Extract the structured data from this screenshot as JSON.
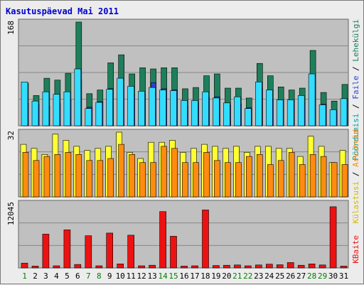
{
  "title": "Kasutuspäevad Mai 2011",
  "colors": {
    "title": "#0000cc",
    "panel_bg": "#c0c0c0",
    "grid": "#888888",
    "weekend_label": "#008000",
    "weekday_label": "#000000",
    "visits": "#00ff00",
    "visits_fill": "#1e7f5a",
    "pages": "#2a3fd8",
    "files": "#33ddff",
    "hits": "#ffff33",
    "sites": "#ff8c10",
    "kbytes": "#ee1111"
  },
  "legend": {
    "hits_label": "Pöördumisi",
    "files_label": "Faile",
    "pages_label": "Lehekülgi",
    "visits_label": "Külastusi",
    "sites_label": "Arvuteid",
    "kbytes_label": "KBaite",
    "separator": "/"
  },
  "chart_data": [
    {
      "type": "bar",
      "panel": "hits-files-pages",
      "ymax_label": "168",
      "ylim": [
        0,
        168
      ],
      "categories": [
        "1",
        "2",
        "3",
        "4",
        "5",
        "6",
        "7",
        "8",
        "9",
        "10",
        "11",
        "12",
        "13",
        "14",
        "15",
        "16",
        "17",
        "18",
        "19",
        "20",
        "21",
        "22",
        "23",
        "24",
        "25",
        "26",
        "27",
        "28",
        "29",
        "30",
        "31"
      ],
      "weekend_days": [
        1,
        7,
        8,
        14,
        15,
        21,
        22,
        28,
        29
      ],
      "series": [
        {
          "name": "Pöördumisi",
          "values": [
            69,
            49,
            77,
            74,
            85,
            168,
            52,
            58,
            102,
            115,
            84,
            94,
            92,
            94,
            94,
            60,
            62,
            81,
            84,
            61,
            61,
            45,
            101,
            81,
            63,
            58,
            61,
            122,
            54,
            40,
            67
          ]
        },
        {
          "name": "Faile",
          "values": [
            36,
            35,
            32,
            36,
            42,
            74,
            30,
            39,
            60,
            66,
            50,
            51,
            70,
            60,
            58,
            32,
            37,
            46,
            47,
            33,
            35,
            29,
            60,
            42,
            42,
            40,
            36,
            72,
            35,
            24,
            44
          ]
        },
        {
          "name": "Lehekülgi",
          "values": [
            71,
            40,
            55,
            51,
            55,
            92,
            28,
            38,
            59,
            77,
            64,
            56,
            62,
            58,
            57,
            41,
            41,
            55,
            45,
            37,
            47,
            28,
            71,
            58,
            42,
            42,
            49,
            84,
            34,
            26,
            44
          ]
        }
      ]
    },
    {
      "type": "bar",
      "panel": "visits-sites",
      "ymax_label": "32",
      "ylim": [
        0,
        32
      ],
      "categories": [
        "1",
        "2",
        "3",
        "4",
        "5",
        "6",
        "7",
        "8",
        "9",
        "10",
        "11",
        "12",
        "13",
        "14",
        "15",
        "16",
        "17",
        "18",
        "19",
        "20",
        "21",
        "22",
        "23",
        "24",
        "25",
        "26",
        "27",
        "28",
        "29",
        "30",
        "31"
      ],
      "series": [
        {
          "name": "Külastusi",
          "values": [
            26,
            24,
            21,
            31,
            28,
            25,
            23,
            24,
            25,
            32,
            22,
            19,
            27,
            27,
            28,
            22,
            24,
            26,
            25,
            24,
            25,
            22,
            25,
            25,
            24,
            24,
            20,
            30,
            25,
            17,
            23
          ]
        },
        {
          "name": "Arvuteid",
          "values": [
            22,
            18,
            20,
            21,
            22,
            21,
            18,
            18,
            19,
            26,
            21,
            17,
            17,
            25,
            24,
            17,
            17,
            22,
            18,
            17,
            17,
            20,
            21,
            16,
            18,
            22,
            16,
            21,
            20,
            17,
            16
          ]
        }
      ]
    },
    {
      "type": "bar",
      "panel": "kbytes",
      "ymax_label": "12045",
      "ylim": [
        0,
        12045
      ],
      "categories": [
        "1",
        "2",
        "3",
        "4",
        "5",
        "6",
        "7",
        "8",
        "9",
        "10",
        "11",
        "12",
        "13",
        "14",
        "15",
        "16",
        "17",
        "18",
        "19",
        "20",
        "21",
        "22",
        "23",
        "24",
        "25",
        "26",
        "27",
        "28",
        "29",
        "30",
        "31"
      ],
      "series": [
        {
          "name": "KBaite",
          "values": [
            900,
            350,
            6300,
            400,
            7100,
            650,
            6000,
            400,
            6500,
            750,
            6100,
            400,
            500,
            10500,
            5900,
            350,
            400,
            10800,
            450,
            500,
            550,
            400,
            550,
            700,
            600,
            1000,
            500,
            750,
            550,
            11400,
            350
          ]
        }
      ]
    }
  ]
}
